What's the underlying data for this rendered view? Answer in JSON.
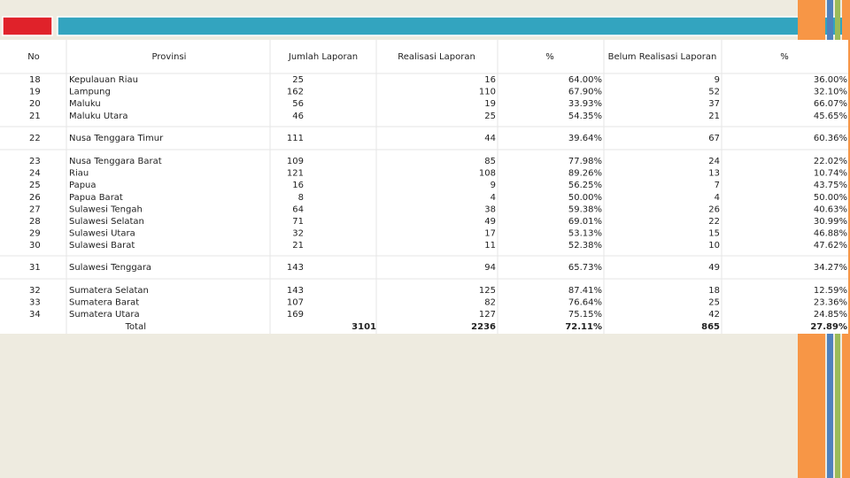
{
  "header": {
    "columns": [
      "No",
      "Provinsi",
      "Jumlah Laporan",
      "Realisasi Laporan",
      "%",
      "Belum Realisasi Laporan",
      "%"
    ]
  },
  "groups": [
    [
      [
        "18",
        "Kepulauan Riau",
        "25",
        "16",
        "64.00%",
        "9",
        "36.00%"
      ],
      [
        "19",
        "Lampung",
        "162",
        "110",
        "67.90%",
        "52",
        "32.10%"
      ],
      [
        "20",
        "Maluku",
        "56",
        "19",
        "33.93%",
        "37",
        "66.07%"
      ],
      [
        "21",
        "Maluku Utara",
        "46",
        "25",
        "54.35%",
        "21",
        "45.65%"
      ]
    ],
    [
      [
        "22",
        "Nusa Tenggara Timur",
        "111",
        "44",
        "39.64%",
        "67",
        "60.36%"
      ]
    ],
    [
      [
        "23",
        "Nusa Tenggara Barat",
        "109",
        "85",
        "77.98%",
        "24",
        "22.02%"
      ],
      [
        "24",
        "Riau",
        "121",
        "108",
        "89.26%",
        "13",
        "10.74%"
      ],
      [
        "25",
        "Papua",
        "16",
        "9",
        "56.25%",
        "7",
        "43.75%"
      ],
      [
        "26",
        "Papua Barat",
        "8",
        "4",
        "50.00%",
        "4",
        "50.00%"
      ],
      [
        "27",
        "Sulawesi Tengah",
        "64",
        "38",
        "59.38%",
        "26",
        "40.63%"
      ],
      [
        "28",
        "Sulawesi Selatan",
        "71",
        "49",
        "69.01%",
        "22",
        "30.99%"
      ],
      [
        "29",
        "Sulawesi Utara",
        "32",
        "17",
        "53.13%",
        "15",
        "46.88%"
      ],
      [
        "30",
        "Sulawesi Barat",
        "21",
        "11",
        "52.38%",
        "10",
        "47.62%"
      ]
    ],
    [
      [
        "31",
        "Sulawesi Tenggara",
        "143",
        "94",
        "65.73%",
        "49",
        "34.27%"
      ]
    ],
    [
      [
        "32",
        "Sumatera Selatan",
        "143",
        "125",
        "87.41%",
        "18",
        "12.59%"
      ],
      [
        "33",
        "Sumatera Barat",
        "107",
        "82",
        "76.64%",
        "25",
        "23.36%"
      ],
      [
        "34",
        "Sumatera Utara",
        "169",
        "127",
        "75.15%",
        "42",
        "24.85%"
      ]
    ]
  ],
  "total": {
    "label": "Total",
    "jumlah": "3101",
    "realisasi": "2236",
    "pct": "72.11%",
    "belum": "865",
    "pct2": "27.89%"
  }
}
